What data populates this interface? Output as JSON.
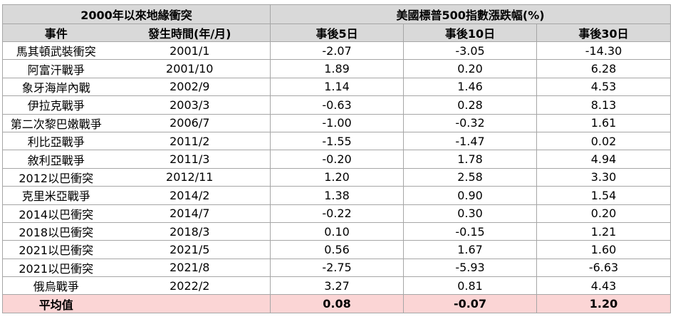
{
  "header": {
    "left_title": "2000年以來地緣衝突",
    "right_title": "美國標普500指數漲跌幅(%)",
    "col_event": "事件",
    "col_date": "發生時間(年/月)",
    "col_d5": "事後5日",
    "col_d10": "事後10日",
    "col_d30": "事後30日"
  },
  "rows": [
    {
      "event": "馬其頓武裝衝突",
      "date": "2001/1",
      "d5": "-2.07",
      "d10": "-3.05",
      "d30": "-14.30"
    },
    {
      "event": "阿富汗戰爭",
      "date": "2001/10",
      "d5": "1.89",
      "d10": "0.20",
      "d30": "6.28"
    },
    {
      "event": "象牙海岸內戰",
      "date": "2002/9",
      "d5": "1.14",
      "d10": "1.46",
      "d30": "4.53"
    },
    {
      "event": "伊拉克戰爭",
      "date": "2003/3",
      "d5": "-0.63",
      "d10": "0.28",
      "d30": "8.13"
    },
    {
      "event": "第二次黎巴嫩戰爭",
      "date": "2006/7",
      "d5": "-1.00",
      "d10": "-0.32",
      "d30": "1.61"
    },
    {
      "event": "利比亞戰爭",
      "date": "2011/2",
      "d5": "-1.55",
      "d10": "-1.47",
      "d30": "0.02"
    },
    {
      "event": "敘利亞戰爭",
      "date": "2011/3",
      "d5": "-0.20",
      "d10": "1.78",
      "d30": "4.94"
    },
    {
      "event": "2012以巴衝突",
      "date": "2012/11",
      "d5": "1.20",
      "d10": "2.58",
      "d30": "3.30"
    },
    {
      "event": "克里米亞戰爭",
      "date": "2014/2",
      "d5": "1.38",
      "d10": "0.90",
      "d30": "1.54"
    },
    {
      "event": "2014以巴衝突",
      "date": "2014/7",
      "d5": "-0.22",
      "d10": "0.30",
      "d30": "0.20"
    },
    {
      "event": "2018以巴衝突",
      "date": "2018/3",
      "d5": "0.10",
      "d10": "-0.15",
      "d30": "1.21"
    },
    {
      "event": "2021以巴衝突",
      "date": "2021/5",
      "d5": "0.56",
      "d10": "1.67",
      "d30": "1.60"
    },
    {
      "event": "2021以巴衝突",
      "date": "2021/8",
      "d5": "-2.75",
      "d10": "-5.93",
      "d30": "-6.63"
    },
    {
      "event": "俄烏戰爭",
      "date": "2022/2",
      "d5": "3.27",
      "d10": "0.81",
      "d30": "4.43"
    }
  ],
  "average": {
    "label": "平均值",
    "d5": "0.08",
    "d10": "-0.07",
    "d30": "1.20"
  },
  "colors": {
    "header_bg": "#d9d9d9",
    "average_bg": "#fbd5d5",
    "border": "#a6a6a6"
  }
}
